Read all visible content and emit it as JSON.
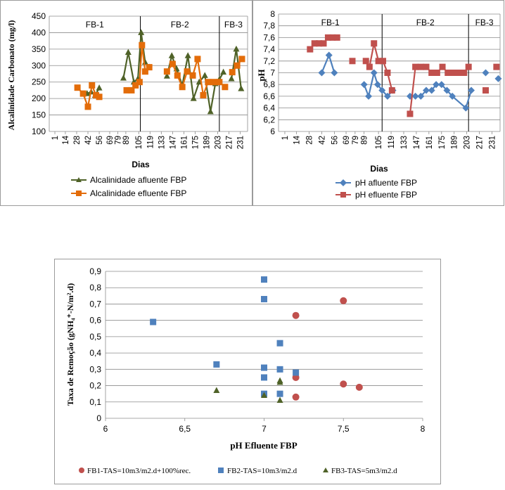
{
  "chart_data": [
    {
      "type": "line",
      "ylabel": "Alcalinidade Carbonato (mg/l)",
      "xlabel": "Dias",
      "ylim": [
        100,
        450
      ],
      "yticks": [
        100,
        150,
        200,
        250,
        300,
        350,
        400,
        450
      ],
      "xlim": [
        -6,
        240
      ],
      "xticks": [
        "1",
        "14",
        "28",
        "42",
        "56",
        "69",
        "79",
        "89",
        "105",
        "119",
        "133",
        "147",
        "161",
        "175",
        "189",
        "203",
        "217",
        "231"
      ],
      "xtick_values": [
        1,
        14,
        28,
        42,
        56,
        69,
        79,
        89,
        105,
        119,
        133,
        147,
        161,
        175,
        189,
        203,
        217,
        231
      ],
      "phases": [
        {
          "label": "FB-1",
          "start": -6,
          "end": 107
        },
        {
          "label": "FB-2",
          "start": 107,
          "end": 205
        },
        {
          "label": "FB-3",
          "start": 205,
          "end": 240
        }
      ],
      "grid": "horizontal",
      "legend_position": "bottom",
      "series": [
        {
          "name": "Alcalinidade afluente FBP",
          "color": "#4f6228",
          "marker": "triangle",
          "points": [
            [
              41,
              215
            ],
            [
              46,
              220
            ],
            [
              51,
              210
            ],
            [
              56,
              232
            ],
            null,
            [
              86,
              262
            ],
            [
              92,
              340
            ],
            [
              99,
              250
            ],
            [
              104,
              260
            ],
            [
              108,
              400
            ],
            [
              113,
              310
            ],
            [
              118,
              295
            ],
            null,
            [
              140,
              268
            ],
            [
              146,
              330
            ],
            [
              152,
              290
            ],
            [
              159,
              240
            ],
            [
              166,
              330
            ],
            [
              173,
              200
            ],
            [
              180,
              250
            ],
            [
              187,
              270
            ],
            [
              194,
              160
            ],
            [
              200,
              245
            ],
            [
              205,
              258
            ],
            [
              210,
              280
            ],
            null,
            [
              220,
              260
            ],
            [
              226,
              350
            ],
            [
              232,
              230
            ]
          ]
        },
        {
          "name": "Alcalinidade efluente FBP",
          "color": "#e36c09",
          "marker": "square",
          "points": [
            [
              29,
              233
            ],
            [
              36,
              215
            ],
            [
              42,
              175
            ],
            [
              47,
              240
            ],
            [
              52,
              210
            ],
            [
              56,
              205
            ],
            null,
            [
              90,
              225
            ],
            [
              96,
              225
            ],
            [
              101,
              240
            ],
            [
              106,
              250
            ],
            [
              109,
              362
            ],
            [
              113,
              282
            ],
            [
              118,
              295
            ],
            null,
            [
              140,
              282
            ],
            [
              147,
              305
            ],
            [
              153,
              270
            ],
            [
              159,
              235
            ],
            [
              165,
              282
            ],
            [
              172,
              270
            ],
            [
              178,
              320
            ],
            [
              185,
              210
            ],
            [
              191,
              250
            ],
            [
              198,
              250
            ],
            [
              205,
              250
            ],
            [
              212,
              235
            ],
            null,
            [
              221,
              280
            ],
            [
              227,
              300
            ],
            [
              233,
              320
            ]
          ]
        }
      ]
    },
    {
      "type": "line",
      "ylabel": "pH",
      "xlabel": "Dias",
      "ylim": [
        6,
        8
      ],
      "yticks": [
        "6",
        "6,2",
        "6,4",
        "6,6",
        "6,8",
        "7",
        "7,2",
        "7,4",
        "7,6",
        "7,8",
        "8"
      ],
      "ytick_values": [
        6,
        6.2,
        6.4,
        6.6,
        6.8,
        7,
        7.2,
        7.4,
        7.6,
        7.8,
        8
      ],
      "xlim": [
        -6,
        240
      ],
      "xticks": [
        "1",
        "14",
        "28",
        "42",
        "56",
        "69",
        "79",
        "89",
        "105",
        "119",
        "133",
        "147",
        "161",
        "175",
        "189",
        "203",
        "217",
        "231"
      ],
      "xtick_values": [
        1,
        14,
        28,
        42,
        56,
        69,
        79,
        89,
        105,
        119,
        133,
        147,
        161,
        175,
        189,
        203,
        217,
        231
      ],
      "phases": [
        {
          "label": "FB-1",
          "start": -6,
          "end": 109
        },
        {
          "label": "FB-2",
          "start": 109,
          "end": 205
        },
        {
          "label": "FB-3",
          "start": 205,
          "end": 240
        }
      ],
      "grid": "horizontal",
      "legend_position": "bottom",
      "series": [
        {
          "name": "pH afluente FBP",
          "color": "#4f81bd",
          "marker": "diamond",
          "points": [
            [
              42,
              7.0
            ],
            [
              50,
              7.3
            ],
            [
              56,
              7.0
            ],
            null,
            [
              89,
              6.8
            ],
            [
              94,
              6.6
            ],
            [
              100,
              7.0
            ],
            [
              104,
              6.8
            ],
            [
              109,
              6.7
            ],
            [
              115,
              6.6
            ],
            [
              121,
              6.7
            ],
            null,
            [
              140,
              6.6
            ],
            [
              146,
              6.6
            ],
            [
              152,
              6.6
            ],
            [
              158,
              6.7
            ],
            [
              164,
              6.7
            ],
            [
              169,
              6.8
            ],
            [
              175,
              6.8
            ],
            [
              181,
              6.7
            ],
            [
              187,
              6.6
            ],
            [
              202,
              6.4
            ],
            [
              208,
              6.7
            ],
            null,
            [
              224,
              7.0
            ],
            null,
            [
              238,
              6.9
            ]
          ]
        },
        {
          "name": "pH efluente FBP",
          "color": "#c0504d",
          "marker": "square",
          "points": [
            [
              29,
              7.4
            ],
            [
              34,
              7.5
            ],
            [
              39,
              7.5
            ],
            [
              44,
              7.5
            ],
            [
              49,
              7.6
            ],
            [
              54,
              7.6
            ],
            [
              59,
              7.6
            ],
            null,
            [
              76,
              7.2
            ],
            null,
            [
              91,
              7.2
            ],
            [
              95,
              7.1
            ],
            [
              100,
              7.5
            ],
            [
              105,
              7.2
            ],
            [
              110,
              7.2
            ],
            [
              115,
              7.0
            ],
            [
              120,
              6.7
            ],
            null,
            [
              140,
              6.3
            ],
            [
              146,
              7.1
            ],
            [
              152,
              7.1
            ],
            [
              158,
              7.1
            ],
            [
              164,
              7.0
            ],
            [
              170,
              7.0
            ],
            [
              176,
              7.1
            ],
            [
              182,
              7.0
            ],
            [
              188,
              7.0
            ],
            [
              194,
              7.0
            ],
            [
              200,
              7.0
            ],
            [
              205,
              7.1
            ],
            null,
            [
              224,
              6.7
            ],
            null,
            [
              236,
              7.1
            ]
          ]
        }
      ]
    },
    {
      "type": "scatter",
      "ylabel": "Taxa de Remoção (gNH₄⁺-N/m².d)",
      "xlabel": "pH Efluente FBP",
      "xlim": [
        6,
        8
      ],
      "ylim": [
        0,
        0.9
      ],
      "xticks": [
        "6",
        "6,5",
        "7",
        "7,5",
        "8"
      ],
      "xtick_values": [
        6,
        6.5,
        7,
        7.5,
        8
      ],
      "yticks": [
        "0",
        "0,1",
        "0,2",
        "0,3",
        "0,4",
        "0,5",
        "0,6",
        "0,7",
        "0,8",
        "0,9"
      ],
      "ytick_values": [
        0,
        0.1,
        0.2,
        0.3,
        0.4,
        0.5,
        0.6,
        0.7,
        0.8,
        0.9
      ],
      "grid": "horizontal",
      "legend_position": "bottom",
      "series": [
        {
          "name": "FB1-TAS=10m3/m2.d+100%rec.",
          "color": "#c0504d",
          "marker": "circle",
          "points": [
            [
              7.2,
              0.63
            ],
            [
              7.5,
              0.72
            ],
            [
              7.2,
              0.25
            ],
            [
              7.5,
              0.21
            ],
            [
              7.6,
              0.19
            ],
            [
              7.2,
              0.13
            ]
          ]
        },
        {
          "name": "FB2-TAS=10m3/m2.d",
          "color": "#4f81bd",
          "marker": "square",
          "points": [
            [
              7.0,
              0.85
            ],
            [
              7.0,
              0.73
            ],
            [
              6.3,
              0.59
            ],
            [
              7.1,
              0.46
            ],
            [
              6.7,
              0.33
            ],
            [
              7.0,
              0.31
            ],
            [
              7.1,
              0.3
            ],
            [
              7.2,
              0.28
            ],
            [
              7.0,
              0.25
            ],
            [
              7.0,
              0.15
            ],
            [
              7.1,
              0.15
            ]
          ]
        },
        {
          "name": "FB3-TAS=5m3/m2.d",
          "color": "#4f6228",
          "marker": "triangle",
          "points": [
            [
              6.7,
              0.17
            ],
            [
              7.0,
              0.14
            ],
            [
              7.1,
              0.23
            ],
            [
              7.1,
              0.22
            ],
            [
              7.1,
              0.11
            ]
          ]
        }
      ]
    }
  ]
}
